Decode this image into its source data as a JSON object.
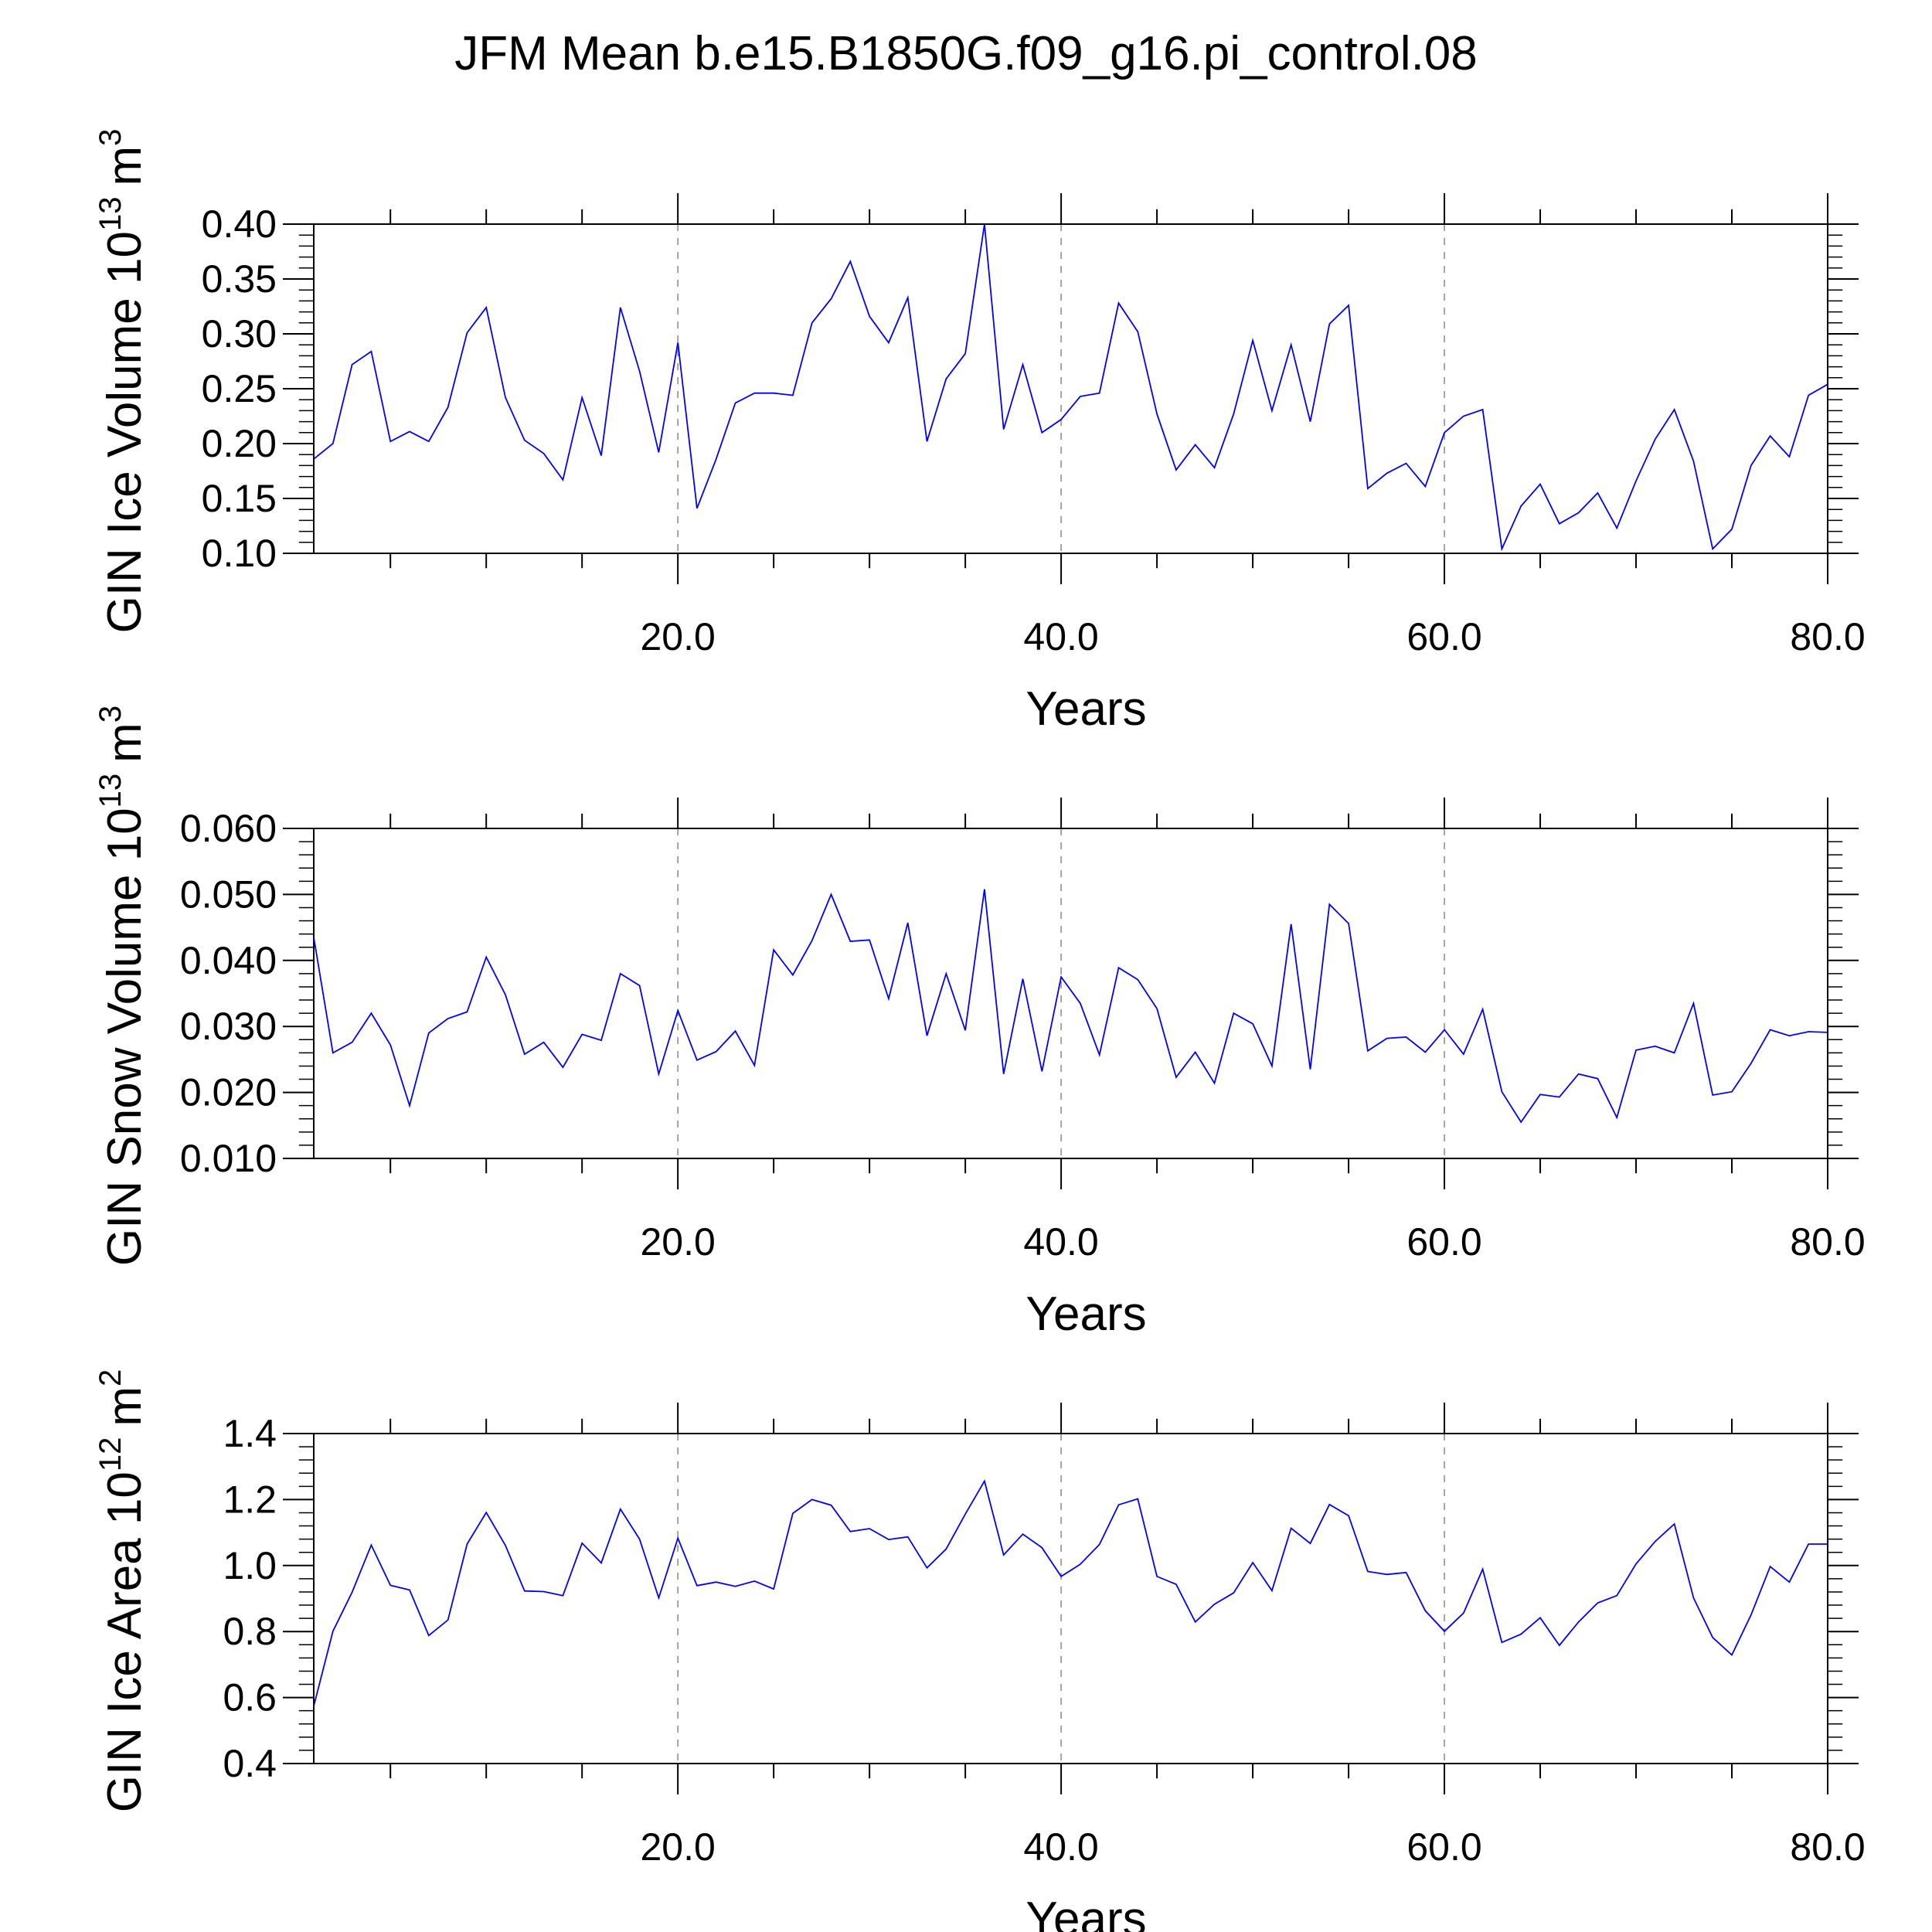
{
  "figure": {
    "title": "JFM Mean b.e15.B1850G.f09_g16.pi_control.08"
  },
  "colors": {
    "series": "#0000ff",
    "axis": "#000000",
    "gridline": "#888888"
  },
  "chart_data": [
    {
      "type": "line",
      "title": "",
      "xlabel": "Years",
      "ylabel": "GIN Ice Volume 10",
      "ylabel_exponent": "13",
      "ylabel_unit": "m",
      "ylabel_unit_exponent": "3",
      "xlim": [
        1,
        80
      ],
      "ylim": [
        0.1,
        0.4
      ],
      "xticks": [
        20,
        40,
        60,
        80
      ],
      "xtick_labels": [
        "20.0",
        "40.0",
        "60.0",
        "80.0"
      ],
      "yticks": [
        0.1,
        0.15,
        0.2,
        0.25,
        0.3,
        0.35,
        0.4
      ],
      "ytick_labels": [
        "0.10",
        "0.15",
        "0.20",
        "0.25",
        "0.30",
        "0.35",
        "0.40"
      ],
      "grid": "vertical dashed at 20, 40, 60",
      "series": [
        {
          "x": [
            1,
            2,
            3,
            4,
            5,
            6,
            7,
            8,
            9,
            10,
            11,
            12,
            13,
            14,
            15,
            16,
            17,
            18,
            19,
            20,
            21,
            22,
            23,
            24,
            25,
            26,
            27,
            28,
            29,
            30,
            31,
            32,
            33,
            34,
            35,
            36,
            37,
            38,
            39,
            40,
            41,
            42,
            43,
            44,
            45,
            46,
            47,
            48,
            49,
            50,
            51,
            52,
            53,
            54,
            55,
            56,
            57,
            58,
            59,
            60,
            61,
            62,
            63,
            64,
            65,
            66,
            67,
            68,
            69,
            70,
            71,
            72,
            73,
            74,
            75,
            76,
            77,
            78,
            79,
            80
          ],
          "values": [
            0.186,
            0.2,
            0.272,
            0.284,
            0.202,
            0.211,
            0.202,
            0.233,
            0.301,
            0.324,
            0.242,
            0.203,
            0.191,
            0.167,
            0.242,
            0.189,
            0.324,
            0.266,
            0.192,
            0.292,
            0.141,
            0.186,
            0.237,
            0.246,
            0.246,
            0.244,
            0.31,
            0.332,
            0.366,
            0.316,
            0.292,
            0.333,
            0.202,
            0.259,
            0.282,
            0.4,
            0.213,
            0.272,
            0.21,
            0.222,
            0.243,
            0.246,
            0.328,
            0.302,
            0.227,
            0.176,
            0.199,
            0.178,
            0.227,
            0.294,
            0.23,
            0.29,
            0.22,
            0.309,
            0.326,
            0.159,
            0.173,
            0.182,
            0.161,
            0.21,
            0.225,
            0.231,
            0.104,
            0.143,
            0.163,
            0.127,
            0.137,
            0.155,
            0.123,
            0.166,
            0.204,
            0.231,
            0.184,
            0.104,
            0.122,
            0.18,
            0.207,
            0.188,
            0.244,
            0.254
          ]
        }
      ]
    },
    {
      "type": "line",
      "title": "",
      "xlabel": "Years",
      "ylabel": "GIN Snow Volume 10",
      "ylabel_exponent": "13",
      "ylabel_unit": "m",
      "ylabel_unit_exponent": "3",
      "xlim": [
        1,
        80
      ],
      "ylim": [
        0.01,
        0.06
      ],
      "xticks": [
        20,
        40,
        60,
        80
      ],
      "xtick_labels": [
        "20.0",
        "40.0",
        "60.0",
        "80.0"
      ],
      "yticks": [
        0.01,
        0.02,
        0.03,
        0.04,
        0.05,
        0.06
      ],
      "ytick_labels": [
        "0.010",
        "0.020",
        "0.030",
        "0.040",
        "0.050",
        "0.060"
      ],
      "grid": "vertical dashed at 20, 40, 60",
      "series": [
        {
          "x": [
            1,
            2,
            3,
            4,
            5,
            6,
            7,
            8,
            9,
            10,
            11,
            12,
            13,
            14,
            15,
            16,
            17,
            18,
            19,
            20,
            21,
            22,
            23,
            24,
            25,
            26,
            27,
            28,
            29,
            30,
            31,
            32,
            33,
            34,
            35,
            36,
            37,
            38,
            39,
            40,
            41,
            42,
            43,
            44,
            45,
            46,
            47,
            48,
            49,
            50,
            51,
            52,
            53,
            54,
            55,
            56,
            57,
            58,
            59,
            60,
            61,
            62,
            63,
            64,
            65,
            66,
            67,
            68,
            69,
            70,
            71,
            72,
            73,
            74,
            75,
            76,
            77,
            78,
            79,
            80
          ],
          "values": [
            0.0435,
            0.026,
            0.0276,
            0.032,
            0.0272,
            0.018,
            0.029,
            0.0312,
            0.0322,
            0.0405,
            0.0348,
            0.0258,
            0.0276,
            0.0238,
            0.0288,
            0.0279,
            0.038,
            0.0362,
            0.0228,
            0.0324,
            0.0249,
            0.0262,
            0.0293,
            0.0241,
            0.0416,
            0.0378,
            0.043,
            0.05,
            0.0429,
            0.0431,
            0.0342,
            0.0457,
            0.0286,
            0.038,
            0.0294,
            0.0508,
            0.0228,
            0.0372,
            0.0232,
            0.0375,
            0.0335,
            0.0257,
            0.0389,
            0.0371,
            0.0327,
            0.0223,
            0.0261,
            0.0214,
            0.032,
            0.0304,
            0.024,
            0.0455,
            0.0235,
            0.0485,
            0.0456,
            0.0263,
            0.0282,
            0.0284,
            0.0261,
            0.0295,
            0.0258,
            0.0326,
            0.0201,
            0.0155,
            0.0197,
            0.0193,
            0.0228,
            0.0221,
            0.0162,
            0.0264,
            0.027,
            0.026,
            0.0335,
            0.0196,
            0.0201,
            0.0244,
            0.0295,
            0.0286,
            0.0292,
            0.0291
          ]
        }
      ]
    },
    {
      "type": "line",
      "title": "",
      "xlabel": "Years",
      "ylabel": "GIN Ice Area 10",
      "ylabel_exponent": "12",
      "ylabel_unit": "m",
      "ylabel_unit_exponent": "2",
      "xlim": [
        1,
        80
      ],
      "ylim": [
        0.4,
        1.4
      ],
      "xticks": [
        20,
        40,
        60,
        80
      ],
      "xtick_labels": [
        "20.0",
        "40.0",
        "60.0",
        "80.0"
      ],
      "yticks": [
        0.4,
        0.6,
        0.8,
        1.0,
        1.2,
        1.4
      ],
      "ytick_labels": [
        "0.4",
        "0.6",
        "0.8",
        "1.0",
        "1.2",
        "1.4"
      ],
      "grid": "vertical dashed at 20, 40, 60",
      "series": [
        {
          "x": [
            1,
            2,
            3,
            4,
            5,
            6,
            7,
            8,
            9,
            10,
            11,
            12,
            13,
            14,
            15,
            16,
            17,
            18,
            19,
            20,
            21,
            22,
            23,
            24,
            25,
            26,
            27,
            28,
            29,
            30,
            31,
            32,
            33,
            34,
            35,
            36,
            37,
            38,
            39,
            40,
            41,
            42,
            43,
            44,
            45,
            46,
            47,
            48,
            49,
            50,
            51,
            52,
            53,
            54,
            55,
            56,
            57,
            58,
            59,
            60,
            61,
            62,
            63,
            64,
            65,
            66,
            67,
            68,
            69,
            70,
            71,
            72,
            73,
            74,
            75,
            76,
            77,
            78,
            79,
            80
          ],
          "values": [
            0.574,
            0.801,
            0.919,
            1.062,
            0.94,
            0.926,
            0.788,
            0.835,
            1.065,
            1.161,
            1.061,
            0.923,
            0.921,
            0.909,
            1.068,
            1.008,
            1.171,
            1.08,
            0.902,
            1.083,
            0.939,
            0.95,
            0.937,
            0.953,
            0.929,
            1.158,
            1.2,
            1.183,
            1.103,
            1.112,
            1.079,
            1.087,
            0.993,
            1.05,
            1.156,
            1.256,
            1.032,
            1.095,
            1.054,
            0.967,
            1.004,
            1.064,
            1.184,
            1.202,
            0.967,
            0.943,
            0.829,
            0.883,
            0.917,
            1.009,
            0.924,
            1.113,
            1.067,
            1.185,
            1.151,
            0.982,
            0.973,
            0.979,
            0.863,
            0.801,
            0.856,
            0.989,
            0.767,
            0.792,
            0.842,
            0.758,
            0.829,
            0.887,
            0.909,
            1.005,
            1.073,
            1.126,
            0.902,
            0.782,
            0.729,
            0.85,
            0.997,
            0.95,
            1.065,
            1.065
          ]
        }
      ]
    }
  ]
}
